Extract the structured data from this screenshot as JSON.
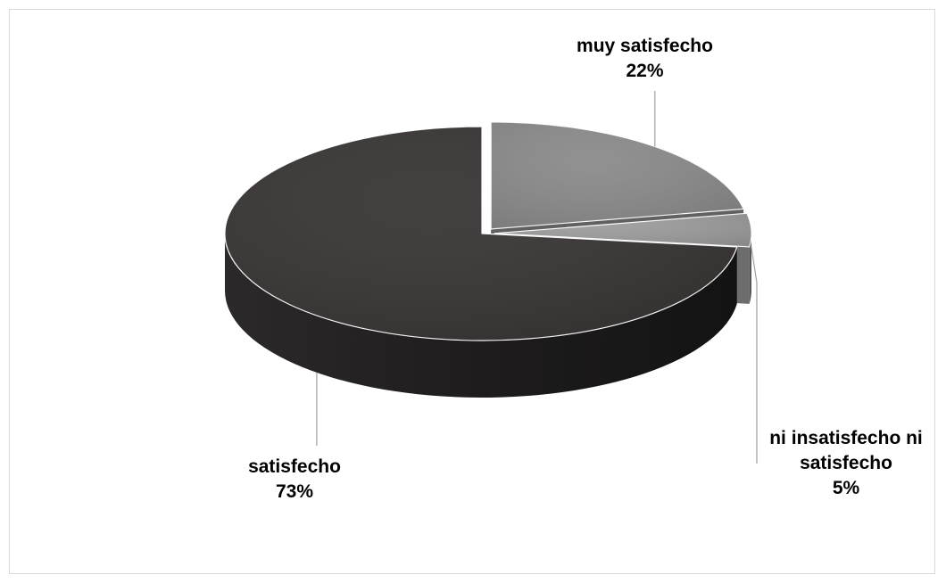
{
  "chart_data": {
    "type": "pie",
    "title": "",
    "legend": "none",
    "data_labels": "category name and percent, outside slices with leader lines",
    "slices": [
      {
        "name": "muy satisfecho",
        "value": 22,
        "label_lines": [
          "muy satisfecho"
        ],
        "pct_label": "22%",
        "color": "#8a8a8a"
      },
      {
        "name": "ni insatisfecho ni satisfecho",
        "value": 5,
        "label_lines": [
          "ni insatisfecho ni",
          "satisfecho"
        ],
        "pct_label": "5%",
        "color": "#9c9c9c"
      },
      {
        "name": "satisfecho",
        "value": 73,
        "label_lines": [
          "satisfecho"
        ],
        "pct_label": "73%",
        "color": "#383434"
      }
    ]
  },
  "colors": {
    "background": "#ffffff",
    "frame_border": "#d9d9d9",
    "leader_line": "#a6a6a6"
  }
}
